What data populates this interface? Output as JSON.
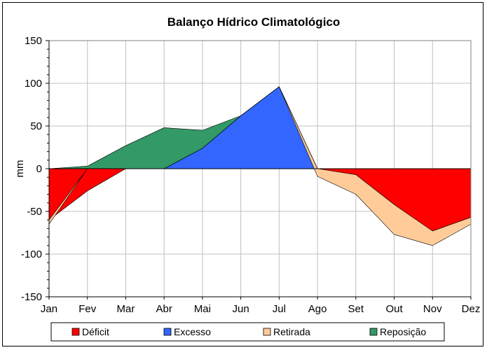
{
  "chart_data": {
    "type": "area",
    "title": "Balanço Hídrico Climatológico",
    "xlabel": "",
    "ylabel": "mm",
    "ylim": [
      -150,
      150
    ],
    "yticks": [
      150,
      100,
      50,
      0,
      -50,
      -100,
      -150
    ],
    "grid": true,
    "legend_position": "bottom",
    "categories": [
      "Jan",
      "Fev",
      "Mar",
      "Abr",
      "Mai",
      "Jun",
      "Jul",
      "Ago",
      "Set",
      "Out",
      "Nov",
      "Dez"
    ],
    "series": [
      {
        "name": "Déficit",
        "color": "#ff0000",
        "values": [
          -60,
          -26,
          0,
          0,
          0,
          0,
          0,
          0,
          -7,
          -42,
          -73,
          -57
        ]
      },
      {
        "name": "Excesso",
        "color": "#3366ff",
        "values": [
          0,
          0,
          0,
          0,
          24,
          62,
          96,
          0,
          0,
          0,
          0,
          0
        ]
      },
      {
        "name": "Retirada",
        "color": "#ffcc99",
        "values": [
          -5,
          0,
          0,
          0,
          0,
          0,
          0,
          -9,
          -23,
          -35,
          -17,
          -8
        ]
      },
      {
        "name": "Reposição",
        "color": "#339966",
        "values": [
          0,
          3,
          27,
          48,
          21,
          0,
          0,
          0,
          0,
          0,
          0,
          0
        ]
      }
    ]
  }
}
